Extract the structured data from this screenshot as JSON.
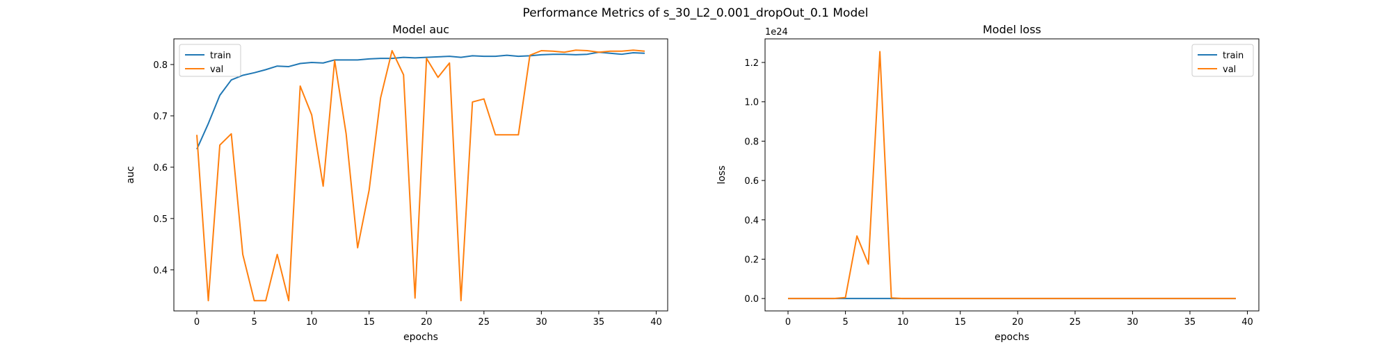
{
  "figure_title": "Performance Metrics of s_30_L2_0.001_dropOut_0.1 Model",
  "colors": {
    "train": "#1f77b4",
    "val": "#ff7f0e"
  },
  "chart_data": [
    {
      "type": "line",
      "title": "Model auc",
      "xlabel": "epochs",
      "ylabel": "auc",
      "xlim": [
        -2,
        41
      ],
      "ylim": [
        0.32,
        0.85
      ],
      "xticks": [
        0,
        5,
        10,
        15,
        20,
        25,
        30,
        35,
        40
      ],
      "yticks": [
        0.4,
        0.5,
        0.6,
        0.7,
        0.8
      ],
      "ytick_labels": [
        "0.4",
        "0.5",
        "0.6",
        "0.7",
        "0.8"
      ],
      "offset_text": "",
      "legend": "upper-left",
      "grid": false,
      "x": [
        0,
        1,
        2,
        3,
        4,
        5,
        6,
        7,
        8,
        9,
        10,
        11,
        12,
        13,
        14,
        15,
        16,
        17,
        18,
        19,
        20,
        21,
        22,
        23,
        24,
        25,
        26,
        27,
        28,
        29,
        30,
        31,
        32,
        33,
        34,
        35,
        36,
        37,
        38,
        39
      ],
      "series": [
        {
          "name": "train",
          "values": [
            0.635,
            0.685,
            0.74,
            0.77,
            0.779,
            0.784,
            0.79,
            0.797,
            0.796,
            0.802,
            0.804,
            0.803,
            0.809,
            0.809,
            0.809,
            0.811,
            0.812,
            0.812,
            0.814,
            0.813,
            0.814,
            0.815,
            0.816,
            0.814,
            0.817,
            0.816,
            0.816,
            0.818,
            0.816,
            0.817,
            0.819,
            0.82,
            0.82,
            0.819,
            0.82,
            0.824,
            0.822,
            0.82,
            0.823,
            0.822
          ]
        },
        {
          "name": "val",
          "values": [
            0.663,
            0.34,
            0.643,
            0.665,
            0.43,
            0.34,
            0.34,
            0.43,
            0.34,
            0.758,
            0.702,
            0.563,
            0.808,
            0.665,
            0.443,
            0.555,
            0.735,
            0.827,
            0.78,
            0.345,
            0.812,
            0.775,
            0.803,
            0.34,
            0.727,
            0.733,
            0.663,
            0.663,
            0.663,
            0.818,
            0.827,
            0.826,
            0.824,
            0.828,
            0.827,
            0.824,
            0.826,
            0.826,
            0.828,
            0.826
          ]
        }
      ]
    },
    {
      "type": "line",
      "title": "Model loss",
      "xlabel": "epochs",
      "ylabel": "loss",
      "xlim": [
        -2,
        41
      ],
      "ylim": [
        -0.063,
        1.32
      ],
      "xticks": [
        0,
        5,
        10,
        15,
        20,
        25,
        30,
        35,
        40
      ],
      "yticks": [
        0.0,
        0.2,
        0.4,
        0.6,
        0.8,
        1.0,
        1.2
      ],
      "ytick_labels": [
        "0.0",
        "0.2",
        "0.4",
        "0.6",
        "0.8",
        "1.0",
        "1.2"
      ],
      "offset_text": "1e24",
      "legend": "upper-right",
      "grid": false,
      "x": [
        0,
        1,
        2,
        3,
        4,
        5,
        6,
        7,
        8,
        9,
        10,
        11,
        12,
        13,
        14,
        15,
        16,
        17,
        18,
        19,
        20,
        21,
        22,
        23,
        24,
        25,
        26,
        27,
        28,
        29,
        30,
        31,
        32,
        33,
        34,
        35,
        36,
        37,
        38,
        39
      ],
      "series": [
        {
          "name": "train",
          "values": [
            0,
            0,
            0,
            0,
            0,
            0,
            0,
            0,
            0,
            0,
            0,
            0,
            0,
            0,
            0,
            0,
            0,
            0,
            0,
            0,
            0,
            0,
            0,
            0,
            0,
            0,
            0,
            0,
            0,
            0,
            0,
            0,
            0,
            0,
            0,
            0,
            0,
            0,
            0,
            0
          ]
        },
        {
          "name": "val",
          "values": [
            0,
            0,
            0,
            0,
            0,
            0.005,
            0.318,
            0.175,
            1.255,
            0.003,
            0,
            0,
            0,
            0,
            0,
            0,
            0,
            0,
            0,
            0,
            0,
            0,
            0,
            0,
            0,
            0,
            0,
            0,
            0,
            0,
            0,
            0,
            0,
            0,
            0,
            0,
            0,
            0,
            0,
            0
          ]
        }
      ]
    }
  ]
}
